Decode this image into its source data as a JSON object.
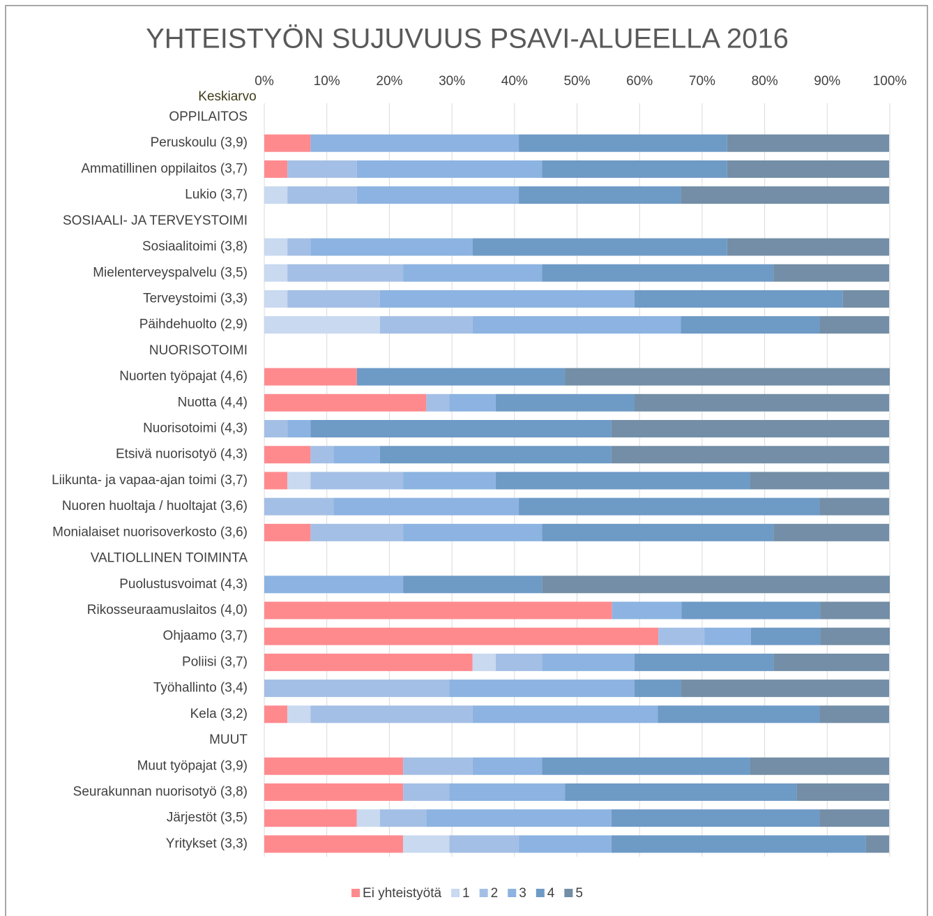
{
  "chart_data": {
    "type": "stacked_bar_horizontal",
    "title": "YHTEISTYÖN SUJUVUUS PSAVI-ALUEELLA 2016",
    "annotation": "Keskiarvo",
    "categories": [
      "OPPILAITOS",
      "Peruskoulu (3,9)",
      "Ammatillinen oppilaitos (3,7)",
      "Lukio (3,7)",
      "SOSIAALI- JA TERVEYSTOIMI",
      "Sosiaalitoimi (3,8)",
      "Mielenterveyspalvelu (3,5)",
      "Terveystoimi (3,3)",
      "Päihdehuolto (2,9)",
      "NUORISOTOIMI",
      "Nuorten työpajat (4,6)",
      "Nuotta (4,4)",
      "Nuorisotoimi (4,3)",
      "Etsivä nuorisotyö (4,3)",
      "Liikunta- ja vapaa-ajan toimi (3,7)",
      "Nuoren huoltaja / huoltajat (3,6)",
      "Monialaiset nuorisoverkosto (3,6)",
      "VALTIOLLINEN TOIMINTA",
      "Puolustusvoimat (4,3)",
      "Rikosseuraamuslaitos (4,0)",
      "Ohjaamo (3,7)",
      "Poliisi (3,7)",
      "Työhallinto (3,4)",
      "Kela (3,2)",
      "MUUT",
      "Muut työpajat (3,9)",
      "Seurakunnan nuorisotyö (3,8)",
      "Järjestöt (3,5)",
      "Yritykset (3,3)"
    ],
    "series": [
      {
        "name": "Ei yhteistyötä",
        "color": "#ff8a8e",
        "values": [
          null,
          7.4,
          3.7,
          0,
          null,
          0,
          0,
          0,
          0,
          null,
          14.8,
          25.9,
          0,
          7.4,
          3.7,
          0,
          7.4,
          null,
          0,
          55.6,
          63.0,
          33.3,
          0,
          3.7,
          null,
          22.2,
          22.2,
          14.8,
          22.2
        ]
      },
      {
        "name": "1",
        "color": "#c8d9f0",
        "values": [
          null,
          0,
          0,
          3.7,
          null,
          3.7,
          3.7,
          3.7,
          18.5,
          null,
          0,
          0,
          0,
          0,
          3.7,
          0,
          0,
          null,
          0,
          0,
          0,
          3.7,
          0,
          3.7,
          null,
          0,
          0,
          3.7,
          7.4
        ]
      },
      {
        "name": "2",
        "color": "#a4bfe5",
        "values": [
          null,
          0,
          11.1,
          11.1,
          null,
          3.7,
          18.5,
          14.8,
          14.8,
          null,
          0,
          3.7,
          3.7,
          3.7,
          14.8,
          11.1,
          14.8,
          null,
          0,
          0,
          7.4,
          7.4,
          29.6,
          25.9,
          null,
          11.1,
          7.4,
          7.4,
          11.1
        ]
      },
      {
        "name": "3",
        "color": "#8cb3e1",
        "values": [
          null,
          33.3,
          29.6,
          25.9,
          null,
          25.9,
          22.2,
          40.7,
          33.3,
          null,
          0,
          7.4,
          3.7,
          7.4,
          14.8,
          29.6,
          22.2,
          null,
          22.2,
          11.1,
          7.4,
          14.8,
          29.6,
          29.6,
          null,
          11.1,
          18.5,
          29.6,
          14.8
        ]
      },
      {
        "name": "4",
        "color": "#6e9ac6",
        "values": [
          null,
          33.3,
          29.6,
          25.9,
          null,
          40.7,
          37.0,
          33.3,
          22.2,
          null,
          33.3,
          22.2,
          48.1,
          37.0,
          40.7,
          48.1,
          37.0,
          null,
          22.2,
          22.2,
          11.1,
          22.2,
          7.4,
          25.9,
          null,
          33.3,
          37.0,
          33.3,
          40.7
        ]
      },
      {
        "name": "5",
        "color": "#738ea6",
        "values": [
          null,
          25.9,
          25.9,
          33.3,
          null,
          25.9,
          18.5,
          7.4,
          11.1,
          null,
          51.9,
          40.7,
          44.4,
          44.4,
          22.2,
          11.1,
          18.5,
          null,
          55.6,
          11.1,
          11.1,
          18.5,
          33.3,
          11.1,
          null,
          22.2,
          14.8,
          11.1,
          3.7
        ]
      }
    ],
    "xlim": [
      0,
      100
    ],
    "xticks": [
      {
        "value": 0,
        "label": "0%"
      },
      {
        "value": 10,
        "label": "10%"
      },
      {
        "value": 20,
        "label": "20%"
      },
      {
        "value": 30,
        "label": "30%"
      },
      {
        "value": 40,
        "label": "40%"
      },
      {
        "value": 50,
        "label": "50%"
      },
      {
        "value": 60,
        "label": "60%"
      },
      {
        "value": 70,
        "label": "70%"
      },
      {
        "value": 80,
        "label": "80%"
      },
      {
        "value": 90,
        "label": "90%"
      },
      {
        "value": 100,
        "label": "100%"
      }
    ],
    "grid": true,
    "legend": "bottom"
  }
}
